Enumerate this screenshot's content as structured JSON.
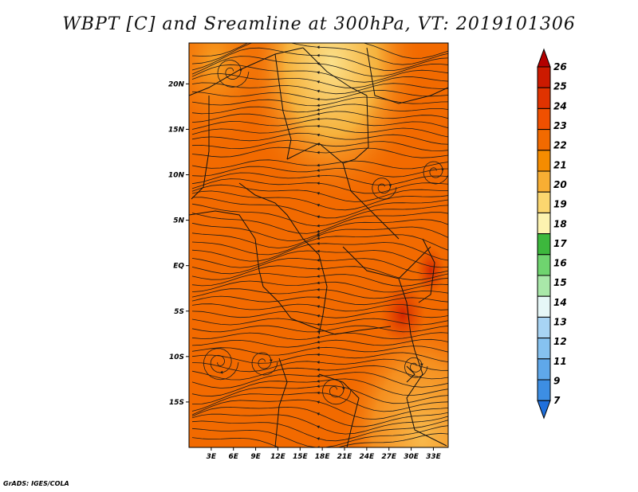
{
  "title": "WBPT [C] and Sreamline at 300hPa, VT: 2019101306",
  "credit": "GrADS: IGES/COLA",
  "map": {
    "lat_labels": [
      "20N",
      "15N",
      "10N",
      "5N",
      "EQ",
      "5S",
      "10S",
      "15S"
    ],
    "lon_labels": [
      "3E",
      "6E",
      "9E",
      "12E",
      "15E",
      "18E",
      "21E",
      "24E",
      "27E",
      "30E",
      "33E"
    ],
    "lat_values": [
      20,
      15,
      10,
      5,
      0,
      -5,
      -10,
      -15
    ],
    "lon_values": [
      3,
      6,
      9,
      12,
      15,
      18,
      21,
      24,
      27,
      30,
      33
    ],
    "lon_range": [
      0,
      35
    ],
    "lat_range": [
      -20,
      24.5
    ]
  },
  "colorbar": {
    "labels": [
      "26",
      "25",
      "24",
      "23",
      "22",
      "21",
      "20",
      "19",
      "18",
      "17",
      "16",
      "15",
      "14",
      "13",
      "12",
      "11",
      "9",
      "7"
    ],
    "colors": [
      "#b30000",
      "#cc1a00",
      "#e03300",
      "#f05000",
      "#f26a00",
      "#f58c00",
      "#f8ae33",
      "#fbd66f",
      "#fdf3b0",
      "#3db83d",
      "#6fd46f",
      "#a9e8a9",
      "#e6f7f7",
      "#a8d4f4",
      "#86c2f0",
      "#5fa8ea",
      "#3d8ee3",
      "#1f6fdb"
    ]
  }
}
